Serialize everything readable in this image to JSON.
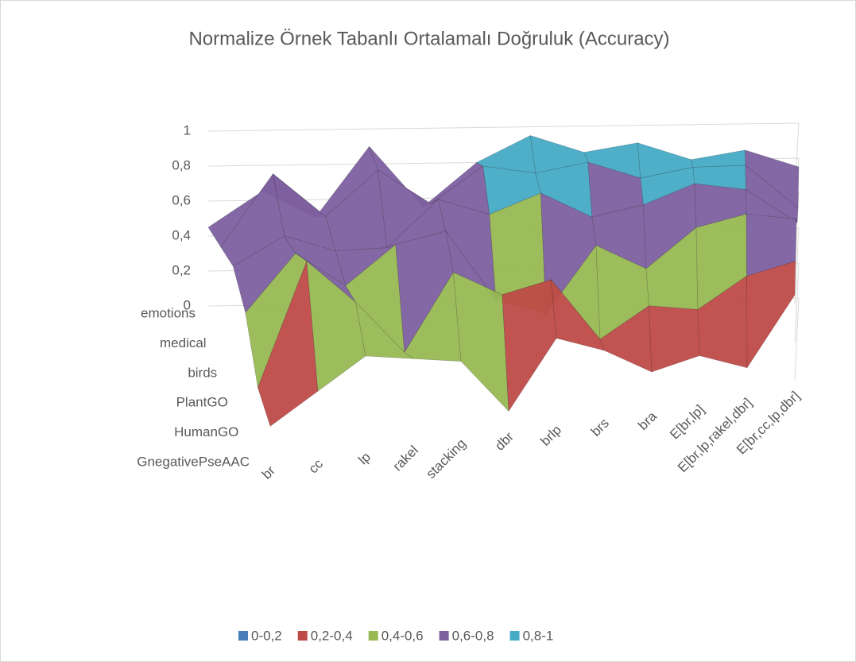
{
  "chart_data": {
    "type": "surface",
    "title": "Normalize Örnek Tabanlı Ortalamalı Doğruluk (Accuracy)",
    "categories": [
      "br",
      "cc",
      "lp",
      "rakel",
      "stacking",
      "dbr",
      "brlp",
      "brs",
      "bra",
      "E[br,lp]",
      "E[br,lp,rakel,dbr]",
      "E[br,cc,lp,dbr]"
    ],
    "series": [
      {
        "name": "emotions",
        "values": [
          0.45,
          0.65,
          0.5,
          0.9,
          0.55,
          0.8,
          0.95,
          0.85,
          0.9,
          0.8,
          0.85,
          0.75
        ]
      },
      {
        "name": "medical",
        "values": [
          0.5,
          0.9,
          0.65,
          0.9,
          0.7,
          0.9,
          0.85,
          0.9,
          0.8,
          0.85,
          0.85,
          0.6
        ]
      },
      {
        "name": "birds",
        "values": [
          0.55,
          0.7,
          0.6,
          0.6,
          0.85,
          0.75,
          0.85,
          0.7,
          0.75,
          0.85,
          0.8,
          0.6
        ]
      },
      {
        "name": "PlantGO",
        "values": [
          0.45,
          0.75,
          0.55,
          0.75,
          0.8,
          0.4,
          0.3,
          0.65,
          0.5,
          0.7,
          0.75,
          0.7
        ]
      },
      {
        "name": "HumanGO",
        "values": [
          0.2,
          0.85,
          0.6,
          0.3,
          0.7,
          0.55,
          0.6,
          0.25,
          0.4,
          0.35,
          0.5,
          0.55
        ]
      },
      {
        "name": "GnegativePseAAC",
        "values": [
          0.15,
          0.3,
          0.45,
          0.4,
          0.35,
          0.05,
          0.4,
          0.3,
          0.15,
          0.2,
          0.1,
          0.45
        ]
      }
    ],
    "zlim": [
      0,
      1
    ],
    "zticks": [
      0,
      {
        "value": 0.2,
        "label": "0,2"
      },
      {
        "value": 0.4,
        "label": "0,4"
      },
      {
        "value": 0.6,
        "label": "0,6"
      },
      {
        "value": 0.8,
        "label": "0,8"
      },
      1
    ],
    "legend": [
      {
        "name": "0-0,2",
        "color": "#4a7ebb"
      },
      {
        "name": "0,2-0,4",
        "color": "#be4b48"
      },
      {
        "name": "0,4-0,6",
        "color": "#98b954"
      },
      {
        "name": "0,6-0,8",
        "color": "#7d60a0"
      },
      {
        "name": "0,8-1",
        "color": "#46aac5"
      }
    ],
    "grid": true
  }
}
